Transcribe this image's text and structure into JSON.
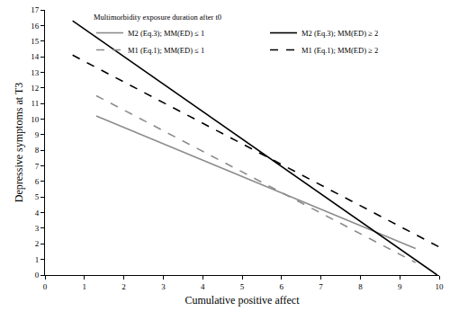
{
  "chart_data": {
    "type": "line",
    "x_label": "Cumulative positive affect",
    "y_label": "Depressive symptoms at T3",
    "legend_title": "Multimorbidity exposure duration after t0",
    "legend": "upper right",
    "grid": false,
    "xlim": [
      0,
      10
    ],
    "xticks": [
      0,
      1,
      2,
      3,
      4,
      5,
      6,
      7,
      8,
      9,
      10
    ],
    "ylim": [
      0,
      17
    ],
    "yticks": [
      0,
      1,
      2,
      3,
      4,
      5,
      6,
      7,
      8,
      9,
      10,
      11,
      12,
      13,
      14,
      15,
      16,
      17
    ],
    "series": [
      {
        "name": "M2 (Eq.3); MM(ED) ≤ 1",
        "color": "#8c8c8c",
        "line_style": "solid",
        "x": [
          1.3,
          9.4
        ],
        "values": [
          10.2,
          1.7
        ]
      },
      {
        "name": "M2 (Eq.3); MM(ED) ≥ 2",
        "color": "#000000",
        "line_style": "solid",
        "x": [
          0.7,
          9.95
        ],
        "values": [
          16.3,
          0.0
        ]
      },
      {
        "name": "M1 (Eq.1); MM(ED) ≤ 1",
        "color": "#8c8c8c",
        "line_style": "dash",
        "x": [
          1.3,
          9.4
        ],
        "values": [
          11.5,
          0.8
        ]
      },
      {
        "name": "M1 (Eq.1); MM(ED) ≥ 2",
        "color": "#000000",
        "line_style": "dash",
        "x": [
          0.7,
          10
        ],
        "values": [
          14.1,
          1.8
        ]
      }
    ]
  }
}
